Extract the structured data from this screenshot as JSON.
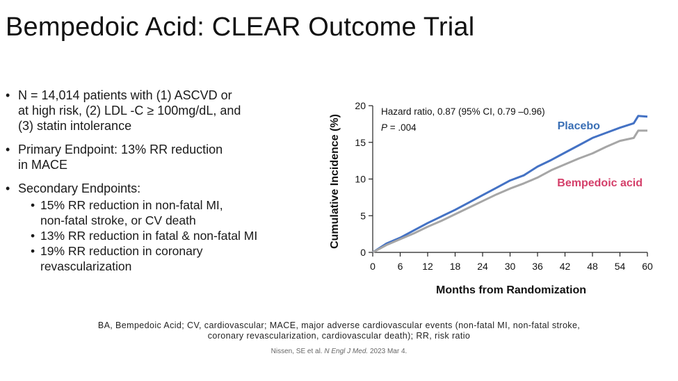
{
  "slide": {
    "title": "Bempedoic Acid: CLEAR Outcome Trial"
  },
  "bullets": [
    {
      "text": "N = 14,014 patients with (1) ASCVD or\nat high risk, (2) LDL -C ≥ 100mg/dL, and\n(3) statin intolerance"
    },
    {
      "text": "Primary Endpoint: 13% RR reduction\nin MACE"
    },
    {
      "text": "Secondary Endpoints:"
    }
  ],
  "sub_bullets": [
    {
      "text": "15% RR reduction in non-fatal MI,\nnon-fatal stroke, or CV death"
    },
    {
      "text": "13% RR reduction in fatal & non-fatal MI"
    },
    {
      "text": "19% RR reduction in coronary\nrevascularization"
    }
  ],
  "footnote": "BA, Bempedoic Acid; CV, cardiovascular; MACE, major adverse cardiovascular events (non-fatal MI, non-fatal stroke,\ncoronary revascularization, cardiovascular death); RR, risk ratio",
  "citation": {
    "authors": "Nissen, SE et al.",
    "journal": "N Engl J Med.",
    "date": "2023 Mar 4."
  },
  "chart_data": {
    "type": "line",
    "title": "",
    "xlabel": "Months from Randomization",
    "ylabel": "Cumulative Incidence (%)",
    "xlim": [
      0,
      60
    ],
    "ylim": [
      0,
      20
    ],
    "xticks": [
      0,
      6,
      12,
      18,
      24,
      30,
      36,
      42,
      48,
      54,
      60
    ],
    "yticks": [
      0,
      5,
      10,
      15,
      20
    ],
    "annotation_line1": "Hazard ratio, 0.87 (95% CI, 0.79 –0.96)",
    "annotation_p_label": "P",
    "annotation_p_value": " = .004",
    "grid": false,
    "series": [
      {
        "name": "Placebo",
        "color": "#4472c4",
        "label_color": "#3a6fb5",
        "x": [
          0,
          3,
          6,
          9,
          12,
          15,
          18,
          21,
          24,
          27,
          30,
          33,
          36,
          39,
          42,
          45,
          48,
          51,
          54,
          57,
          58,
          60
        ],
        "y": [
          0,
          1.2,
          2.0,
          3.0,
          4.0,
          4.9,
          5.8,
          6.8,
          7.8,
          8.8,
          9.8,
          10.5,
          11.7,
          12.6,
          13.6,
          14.6,
          15.6,
          16.3,
          17.0,
          17.6,
          18.6,
          18.5
        ]
      },
      {
        "name": "Bempedoic acid",
        "color": "#a6a6a6",
        "label_color": "#d43f6a",
        "x": [
          0,
          3,
          6,
          9,
          12,
          15,
          18,
          21,
          24,
          27,
          30,
          33,
          36,
          39,
          42,
          45,
          48,
          51,
          54,
          57,
          58,
          60
        ],
        "y": [
          0,
          1.0,
          1.8,
          2.6,
          3.5,
          4.3,
          5.2,
          6.1,
          7.0,
          7.9,
          8.7,
          9.4,
          10.2,
          11.2,
          12.0,
          12.8,
          13.5,
          14.4,
          15.2,
          15.6,
          16.6,
          16.6
        ]
      }
    ]
  }
}
